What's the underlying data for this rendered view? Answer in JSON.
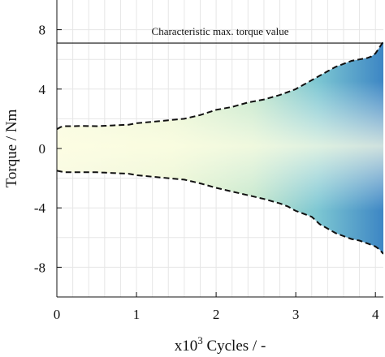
{
  "chart_data": {
    "type": "area",
    "title": "",
    "xlabel": "x10^3 Cycles / -",
    "xlabel_base": "x10",
    "xlabel_exp": "3",
    "xlabel_rest": " Cycles / -",
    "ylabel": "Torque / Nm",
    "xlim": [
      0,
      4.1
    ],
    "ylim": [
      -10,
      10
    ],
    "x_ticks": [
      0,
      1,
      2,
      3,
      4
    ],
    "x_tick_labels": [
      "0",
      "1",
      "2",
      "3",
      "4"
    ],
    "y_ticks": [
      8,
      4,
      0,
      -4,
      -8
    ],
    "y_tick_labels": [
      "8",
      "4",
      "0",
      "-4",
      "-8"
    ],
    "grid": true,
    "reference_line": {
      "label": "Characteristic max. torque value",
      "y": 7.1
    },
    "series": [
      {
        "x": [
          0,
          0.05,
          0.1,
          0.2,
          0.3,
          0.5,
          0.7,
          0.9,
          1.0,
          1.2,
          1.4,
          1.6,
          1.8,
          2.0,
          2.2,
          2.4,
          2.6,
          2.8,
          2.9,
          3.0,
          3.1,
          3.2,
          3.3,
          3.4,
          3.5,
          3.6,
          3.7,
          3.8,
          3.9,
          3.95,
          4.0,
          4.05,
          4.1
        ],
        "upper": [
          1.3,
          1.45,
          1.5,
          1.5,
          1.52,
          1.5,
          1.55,
          1.6,
          1.7,
          1.8,
          1.9,
          2.0,
          2.25,
          2.6,
          2.8,
          3.1,
          3.3,
          3.6,
          3.8,
          4.0,
          4.3,
          4.6,
          4.9,
          5.2,
          5.5,
          5.7,
          5.9,
          6.0,
          6.1,
          6.2,
          6.4,
          6.8,
          7.2
        ],
        "lower": [
          -1.5,
          -1.55,
          -1.6,
          -1.6,
          -1.6,
          -1.6,
          -1.65,
          -1.7,
          -1.8,
          -1.9,
          -2.0,
          -2.1,
          -2.35,
          -2.65,
          -2.9,
          -3.15,
          -3.4,
          -3.7,
          -3.9,
          -4.2,
          -4.4,
          -4.6,
          -5.1,
          -5.4,
          -5.7,
          -5.9,
          -6.1,
          -6.2,
          -6.4,
          -6.5,
          -6.6,
          -6.8,
          -7.1
        ]
      }
    ]
  }
}
